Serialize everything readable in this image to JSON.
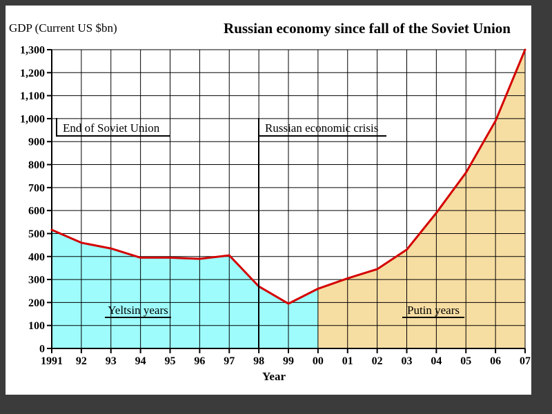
{
  "colors": {
    "frame_background": "#3b3b3b",
    "chart_background": "#ffffff"
  },
  "chart_data": {
    "type": "area",
    "title": "Russian economy since fall of the Soviet Union",
    "ylabel": "GDP (Current US $bn)",
    "xlabel": "Year",
    "grid": true,
    "ylim": [
      0,
      1300
    ],
    "y_tick_step": 100,
    "x_tick_labels": [
      "1991",
      "92",
      "93",
      "94",
      "95",
      "96",
      "97",
      "98",
      "99",
      "00",
      "01",
      "02",
      "03",
      "04",
      "05",
      "06",
      "07"
    ],
    "y_tick_labels": [
      "0",
      "100",
      "200",
      "300",
      "400",
      "500",
      "600",
      "700",
      "800",
      "900",
      "1,000",
      "1,100",
      "1,200",
      "1,300"
    ],
    "years": [
      1991,
      1992,
      1993,
      1994,
      1995,
      1996,
      1997,
      1998,
      1999,
      2000,
      2001,
      2002,
      2003,
      2004,
      2005,
      2006,
      2007
    ],
    "gdp_current_usd_bn": [
      516,
      460,
      435,
      395,
      395,
      390,
      405,
      270,
      195,
      260,
      305,
      345,
      430,
      590,
      765,
      990,
      1300
    ],
    "line_color": "#d40000",
    "regions": [
      {
        "label": "Yeltsin years",
        "start_year": 1991,
        "end_year": 2000,
        "fill": "#9efcfc"
      },
      {
        "label": "Putin years",
        "start_year": 2000,
        "end_year": 2007,
        "fill": "#f6dda2"
      }
    ],
    "annotations": [
      {
        "text": "End of Soviet Union",
        "year": 1991
      },
      {
        "text": "Russian economic crisis",
        "year": 1998
      }
    ]
  }
}
